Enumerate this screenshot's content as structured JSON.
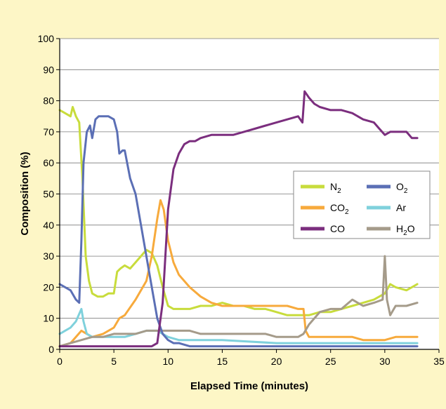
{
  "chart_data": {
    "type": "line",
    "title": "",
    "xlabel": "Elapsed Time (minutes)",
    "ylabel": "Composition (%)",
    "xlim": [
      0,
      35
    ],
    "ylim": [
      0,
      100
    ],
    "xticks": [
      0,
      5,
      10,
      15,
      20,
      25,
      30,
      35
    ],
    "yticks": [
      0,
      10,
      20,
      30,
      40,
      50,
      60,
      70,
      80,
      90,
      100
    ],
    "grid": "horizontal",
    "legend_position": "center-right",
    "series": [
      {
        "name": "N2",
        "label_base": "N",
        "label_sub": "2",
        "color": "#c8dc3c",
        "x": [
          0,
          0.5,
          1,
          1.2,
          1.5,
          1.8,
          2.1,
          2.4,
          2.7,
          3,
          3.5,
          4,
          4.5,
          5,
          5.3,
          5.6,
          6,
          6.5,
          7,
          7.5,
          8,
          8.5,
          9,
          9.5,
          10,
          10.5,
          11,
          12,
          13,
          14,
          15,
          16,
          17,
          18,
          19,
          20,
          21,
          22,
          23,
          24,
          25,
          26,
          27,
          28,
          29,
          30,
          30.5,
          31,
          32,
          32.5,
          33
        ],
        "y": [
          77,
          76,
          75,
          78,
          75,
          73,
          55,
          30,
          22,
          18,
          17,
          17,
          18,
          18,
          25,
          26,
          27,
          26,
          28,
          30,
          32,
          31,
          27,
          20,
          14,
          13,
          13,
          13,
          14,
          14,
          15,
          14,
          14,
          13,
          13,
          12,
          11,
          11,
          11,
          12,
          12,
          13,
          14,
          15,
          16,
          18,
          21,
          20,
          19,
          20,
          21
        ]
      },
      {
        "name": "O2",
        "label_base": "O",
        "label_sub": "2",
        "color": "#5b6fb5",
        "x": [
          0,
          0.5,
          1,
          1.5,
          1.8,
          2,
          2.2,
          2.5,
          2.8,
          3,
          3.3,
          3.6,
          4,
          4.5,
          5,
          5.3,
          5.5,
          5.8,
          6,
          6.5,
          7,
          7.5,
          8,
          8.5,
          9,
          9.5,
          10,
          10.5,
          11,
          12,
          15,
          20,
          25,
          30,
          33
        ],
        "y": [
          21,
          20,
          19,
          16,
          15,
          35,
          60,
          70,
          72,
          68,
          74,
          75,
          75,
          75,
          74,
          70,
          63,
          64,
          64,
          55,
          50,
          40,
          30,
          20,
          10,
          5,
          3,
          2,
          2,
          1,
          1,
          1,
          1,
          1,
          1
        ]
      },
      {
        "name": "CO2",
        "label_base": "CO",
        "label_sub": "2",
        "color": "#f7aa3c",
        "x": [
          0,
          1,
          2,
          2.5,
          3,
          4,
          5,
          5.5,
          6,
          7,
          8,
          8.5,
          9,
          9.3,
          9.6,
          10,
          10.5,
          11,
          12,
          13,
          14,
          15,
          16,
          17,
          18,
          19,
          20,
          21,
          22,
          22.5,
          22.7,
          23,
          24,
          25,
          26,
          27,
          28,
          29,
          30,
          31,
          32,
          33
        ],
        "y": [
          1,
          2,
          6,
          5,
          4,
          5,
          7,
          10,
          11,
          16,
          22,
          30,
          42,
          48,
          45,
          35,
          28,
          24,
          20,
          17,
          15,
          14,
          14,
          14,
          14,
          14,
          14,
          14,
          13,
          13,
          6,
          4,
          4,
          4,
          4,
          4,
          3,
          3,
          3,
          4,
          4,
          4
        ]
      },
      {
        "name": "Ar",
        "label_base": "Ar",
        "label_sub": "",
        "color": "#7fd1dc",
        "x": [
          0,
          0.5,
          1,
          1.5,
          2,
          2.2,
          2.5,
          3,
          4,
          5,
          6,
          7,
          8,
          9,
          10,
          11,
          12,
          15,
          20,
          22,
          25,
          30,
          33
        ],
        "y": [
          5,
          6,
          7,
          9,
          13,
          9,
          5,
          4,
          4,
          4,
          4,
          5,
          6,
          6,
          4,
          3,
          3,
          3,
          2,
          2,
          2,
          2,
          2
        ]
      },
      {
        "name": "CO",
        "label_base": "CO",
        "label_sub": "",
        "color": "#7b2e7e",
        "x": [
          0,
          2,
          5,
          8,
          8.5,
          9,
          9.5,
          10,
          10.5,
          11,
          11.5,
          12,
          12.5,
          13,
          14,
          15,
          16,
          17,
          18,
          19,
          20,
          21,
          22,
          22.4,
          22.6,
          23,
          23.5,
          24,
          25,
          26,
          27,
          28,
          29,
          29.5,
          30,
          30.5,
          31,
          32,
          32.5,
          33
        ],
        "y": [
          1,
          1,
          1,
          1,
          1,
          2,
          15,
          45,
          58,
          63,
          66,
          67,
          67,
          68,
          69,
          69,
          69,
          70,
          71,
          72,
          73,
          74,
          75,
          73,
          83,
          81,
          79,
          78,
          77,
          77,
          76,
          74,
          73,
          71,
          69,
          70,
          70,
          70,
          68,
          68
        ]
      },
      {
        "name": "H2O",
        "label_base": "H",
        "label_sub": "2",
        "label_tail": "O",
        "color": "#a59b8a",
        "x": [
          0,
          1,
          2,
          3,
          4,
          5,
          6,
          7,
          8,
          9,
          10,
          11,
          12,
          13,
          14,
          15,
          16,
          17,
          18,
          19,
          20,
          21,
          22,
          22.5,
          23,
          24,
          25,
          26,
          27,
          28,
          29,
          29.8,
          30,
          30.2,
          30.5,
          31,
          32,
          33
        ],
        "y": [
          1,
          2,
          3,
          4,
          4,
          5,
          5,
          5,
          6,
          6,
          6,
          6,
          6,
          5,
          5,
          5,
          5,
          5,
          5,
          5,
          4,
          4,
          4,
          5,
          8,
          12,
          13,
          13,
          16,
          14,
          15,
          16,
          30,
          16,
          11,
          14,
          14,
          15
        ]
      }
    ]
  }
}
